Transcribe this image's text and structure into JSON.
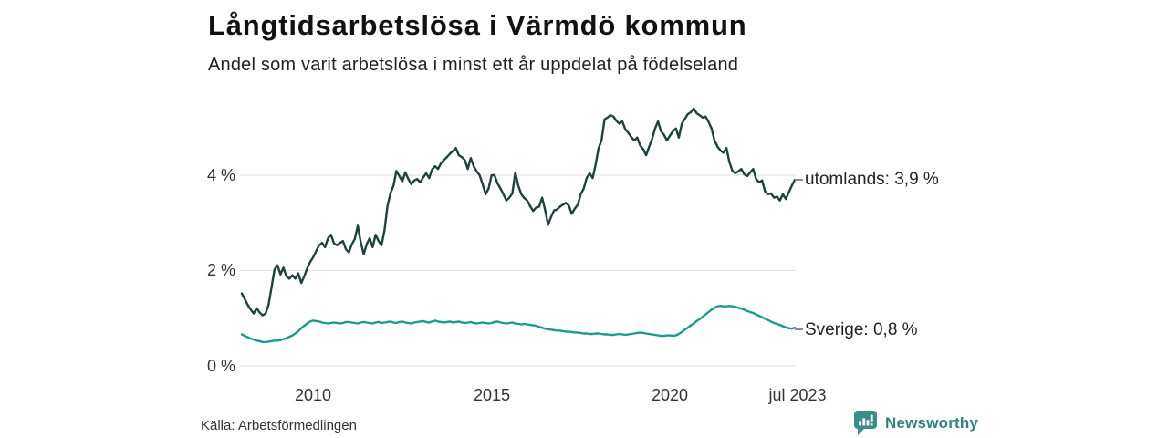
{
  "header": {
    "title": "Långtidsarbetslösa i Värmdö kommun",
    "subtitle": "Andel som varit arbetslösa i minst ett år uppdelat på födelseland"
  },
  "footer": {
    "source": "Källa: Arbetsförmedlingen",
    "brand": "Newsworthy"
  },
  "colors": {
    "utomlands_line": "#1e423d",
    "sverige_line": "#199c8b",
    "grid": "#e4e4ea",
    "brand_teal": "#2f827c",
    "brand_icon": "#3d8d86"
  },
  "chart_data": {
    "type": "line",
    "title": "Långtidsarbetslösa i Värmdö kommun",
    "subtitle": "Andel som varit arbetslösa i minst ett år uppdelat på födelseland",
    "unit": "%",
    "frequency": "monthly",
    "x_domain_years": [
      2008.0,
      2023.58
    ],
    "ylim": [
      0,
      5.6
    ],
    "grid": true,
    "grid_color": "#e4e4ea",
    "x_axis": {
      "ticks": [
        {
          "label": "2010",
          "year": 2010
        },
        {
          "label": "2015",
          "year": 2015
        },
        {
          "label": "2020",
          "year": 2020
        },
        {
          "label": "jul 2023",
          "year": 2023.5
        }
      ]
    },
    "y_axis": {
      "ticks": [
        {
          "label": "0 %",
          "value": 0
        },
        {
          "label": "2 %",
          "value": 2
        },
        {
          "label": "4 %",
          "value": 4
        }
      ]
    },
    "series": [
      {
        "name": "utomlands",
        "end_label": "utomlands: 3,9 %",
        "last_value": 3.9,
        "color": "#1e423d",
        "start": "2008-01",
        "values": [
          1.52,
          1.4,
          1.28,
          1.18,
          1.1,
          1.21,
          1.12,
          1.06,
          1.1,
          1.28,
          1.65,
          2.02,
          2.11,
          1.92,
          2.06,
          1.88,
          1.83,
          1.9,
          1.83,
          1.94,
          1.74,
          1.88,
          2.05,
          2.18,
          2.28,
          2.41,
          2.53,
          2.58,
          2.49,
          2.68,
          2.75,
          2.57,
          2.53,
          2.58,
          2.62,
          2.45,
          2.38,
          2.55,
          2.66,
          2.94,
          2.6,
          2.34,
          2.55,
          2.68,
          2.49,
          2.75,
          2.62,
          2.53,
          2.85,
          3.35,
          3.62,
          3.78,
          4.09,
          3.98,
          3.87,
          4.06,
          3.92,
          3.81,
          3.89,
          3.92,
          3.85,
          3.95,
          4.04,
          3.94,
          4.12,
          4.19,
          4.13,
          4.25,
          4.32,
          4.38,
          4.45,
          4.51,
          4.57,
          4.42,
          4.38,
          4.32,
          4.13,
          4.36,
          4.19,
          4.08,
          4.0,
          3.81,
          3.6,
          3.72,
          4.0,
          4.0,
          3.83,
          3.72,
          3.6,
          3.47,
          3.53,
          3.62,
          4.06,
          3.78,
          3.6,
          3.52,
          3.47,
          3.35,
          3.25,
          3.32,
          3.34,
          3.53,
          3.28,
          2.96,
          3.12,
          3.26,
          3.28,
          3.34,
          3.38,
          3.42,
          3.36,
          3.19,
          3.3,
          3.38,
          3.6,
          3.72,
          3.94,
          4.04,
          3.94,
          4.22,
          4.57,
          4.73,
          5.17,
          5.21,
          5.26,
          5.23,
          5.14,
          5.08,
          5.13,
          4.96,
          4.89,
          4.8,
          4.73,
          4.79,
          4.62,
          4.55,
          4.42,
          4.6,
          4.76,
          4.98,
          5.13,
          4.92,
          4.85,
          4.73,
          4.83,
          4.92,
          4.98,
          4.79,
          5.08,
          5.18,
          5.28,
          5.32,
          5.4,
          5.3,
          5.26,
          5.21,
          5.23,
          5.12,
          4.98,
          4.73,
          4.6,
          4.52,
          4.47,
          4.57,
          4.28,
          4.09,
          4.04,
          4.08,
          4.13,
          4.02,
          3.98,
          4.06,
          4.13,
          3.92,
          3.85,
          3.89,
          3.66,
          3.6,
          3.62,
          3.53,
          3.55,
          3.47,
          3.6,
          3.5,
          3.64,
          3.78,
          3.9
        ]
      },
      {
        "name": "Sverige",
        "end_label": "Sverige: 0,8 %",
        "last_value": 0.8,
        "color": "#199c8b",
        "start": "2008-01",
        "values": [
          0.66,
          0.63,
          0.6,
          0.57,
          0.55,
          0.53,
          0.52,
          0.5,
          0.5,
          0.51,
          0.52,
          0.53,
          0.53,
          0.54,
          0.56,
          0.58,
          0.61,
          0.64,
          0.68,
          0.73,
          0.79,
          0.84,
          0.89,
          0.93,
          0.95,
          0.94,
          0.93,
          0.91,
          0.9,
          0.89,
          0.9,
          0.91,
          0.9,
          0.89,
          0.9,
          0.92,
          0.92,
          0.91,
          0.9,
          0.89,
          0.91,
          0.92,
          0.91,
          0.9,
          0.89,
          0.91,
          0.92,
          0.9,
          0.91,
          0.92,
          0.93,
          0.91,
          0.9,
          0.92,
          0.93,
          0.91,
          0.9,
          0.89,
          0.91,
          0.92,
          0.93,
          0.94,
          0.92,
          0.91,
          0.93,
          0.95,
          0.93,
          0.92,
          0.91,
          0.92,
          0.93,
          0.91,
          0.92,
          0.93,
          0.91,
          0.9,
          0.91,
          0.92,
          0.9,
          0.89,
          0.9,
          0.91,
          0.9,
          0.89,
          0.9,
          0.92,
          0.93,
          0.91,
          0.9,
          0.89,
          0.9,
          0.91,
          0.89,
          0.88,
          0.87,
          0.88,
          0.87,
          0.86,
          0.85,
          0.84,
          0.82,
          0.8,
          0.78,
          0.77,
          0.76,
          0.75,
          0.74,
          0.74,
          0.73,
          0.72,
          0.72,
          0.71,
          0.7,
          0.7,
          0.69,
          0.68,
          0.68,
          0.67,
          0.67,
          0.68,
          0.68,
          0.67,
          0.66,
          0.66,
          0.65,
          0.65,
          0.66,
          0.67,
          0.66,
          0.65,
          0.66,
          0.67,
          0.68,
          0.69,
          0.7,
          0.69,
          0.68,
          0.67,
          0.66,
          0.65,
          0.64,
          0.63,
          0.63,
          0.64,
          0.64,
          0.63,
          0.64,
          0.67,
          0.71,
          0.76,
          0.8,
          0.85,
          0.89,
          0.94,
          0.98,
          1.03,
          1.08,
          1.13,
          1.18,
          1.22,
          1.25,
          1.26,
          1.25,
          1.25,
          1.26,
          1.25,
          1.24,
          1.22,
          1.2,
          1.18,
          1.15,
          1.13,
          1.11,
          1.08,
          1.05,
          1.02,
          0.99,
          0.96,
          0.93,
          0.9,
          0.88,
          0.86,
          0.83,
          0.81,
          0.79,
          0.78,
          0.8
        ]
      }
    ]
  }
}
